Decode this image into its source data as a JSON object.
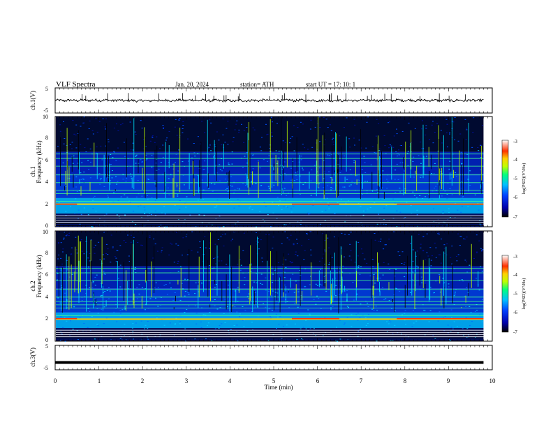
{
  "header": {
    "title": "VLF  Spectra",
    "date": "Jan. 20, 2024",
    "station": "station= ATH",
    "start": "start  UT  =    17: 10: 1"
  },
  "chart_data": [
    {
      "type": "line",
      "id": "ch1-waveform",
      "ylabel": "ch.1(V)",
      "ylim": [
        -5,
        5
      ],
      "yticks": [
        "5",
        "-5"
      ],
      "x": [
        0,
        1,
        2,
        3,
        4,
        5,
        6,
        7,
        8,
        9,
        9.8
      ],
      "values": [
        0.0,
        0.1,
        -0.1,
        0.1,
        -0.1,
        0.1,
        0.0,
        0.0,
        0.1,
        0.0,
        0.0
      ]
    },
    {
      "type": "heatmap",
      "id": "ch1-spectrogram",
      "ylabel_top": "ch.1",
      "ylabel": "Frequency  (kHz)",
      "ylim": [
        0,
        10
      ],
      "yticks": [
        "0",
        "2",
        "4",
        "6",
        "8",
        "10"
      ],
      "tones_khz": [
        0.4,
        0.6,
        0.8,
        1.0,
        2.05,
        2.3,
        3.0,
        3.3,
        4.0,
        4.7,
        5.5,
        6.2,
        6.6
      ],
      "colorbar": {
        "label": "log(PSD)(V²/Hz)",
        "range": [
          -7,
          -3
        ],
        "ticks": [
          "-3",
          "-4",
          "-5",
          "-6",
          "-7"
        ]
      }
    },
    {
      "type": "heatmap",
      "id": "ch2-spectrogram",
      "ylabel_top": "ch.2",
      "ylabel": "Frequency  (kHz)",
      "ylim": [
        0,
        10
      ],
      "yticks": [
        "0",
        "2",
        "4",
        "6",
        "8",
        "10"
      ],
      "tones_khz": [
        0.4,
        0.6,
        0.8,
        1.0,
        2.0,
        2.3,
        3.0,
        3.3,
        3.6,
        4.0,
        4.7,
        5.5,
        6.2,
        6.6
      ],
      "colorbar": {
        "label": "log(PSD)(V²/Hz)",
        "range": [
          -7,
          -3
        ],
        "ticks": [
          "-3",
          "-4",
          "-5",
          "-6",
          "-7"
        ]
      }
    },
    {
      "type": "line",
      "id": "ch3-waveform",
      "ylabel": "ch.3(V)",
      "ylim": [
        -5,
        5
      ],
      "yticks": [
        "5",
        "-5"
      ],
      "x": [
        0,
        9.8
      ],
      "values": [
        -2,
        -2
      ]
    }
  ],
  "xaxis": {
    "label": "Time  (min)",
    "range": [
      0,
      10
    ],
    "ticks": [
      "0",
      "1",
      "2",
      "3",
      "4",
      "5",
      "6",
      "7",
      "8",
      "9",
      "10"
    ]
  },
  "colors": {
    "colormap": [
      "#000000",
      "#0000aa",
      "#0040ff",
      "#00c0ff",
      "#00ff80",
      "#c0ff00",
      "#ffd000",
      "#ff3000",
      "#ffffff"
    ]
  }
}
